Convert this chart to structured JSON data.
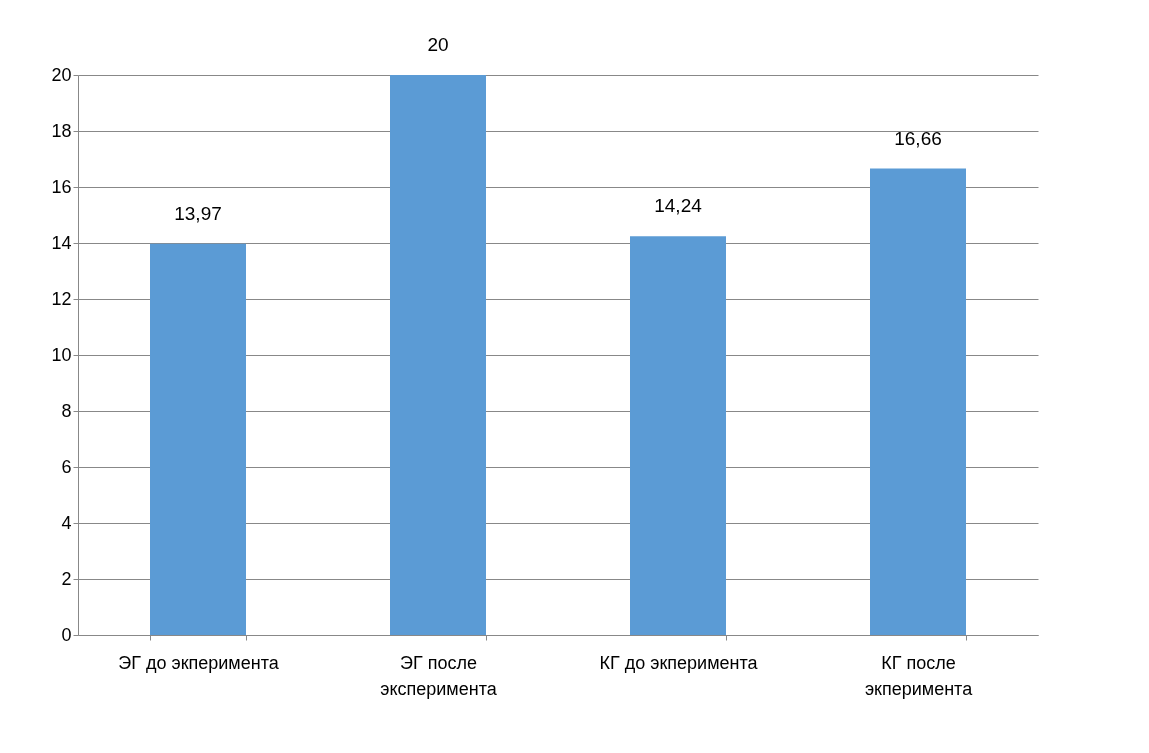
{
  "chart_data": {
    "type": "bar",
    "categories": [
      "ЭГ до экперимента",
      "ЭГ после эксперимента",
      "КГ до экперимента",
      "КГ после экперимента"
    ],
    "values": [
      13.97,
      20,
      14.24,
      16.66
    ],
    "value_labels": [
      "13,97",
      "20",
      "14,24",
      "16,66"
    ],
    "color": "#5b9bd5",
    "ylim": [
      0,
      20
    ],
    "yticks": [
      0,
      2,
      4,
      6,
      8,
      10,
      12,
      14,
      16,
      18,
      20
    ],
    "grid": "y"
  }
}
